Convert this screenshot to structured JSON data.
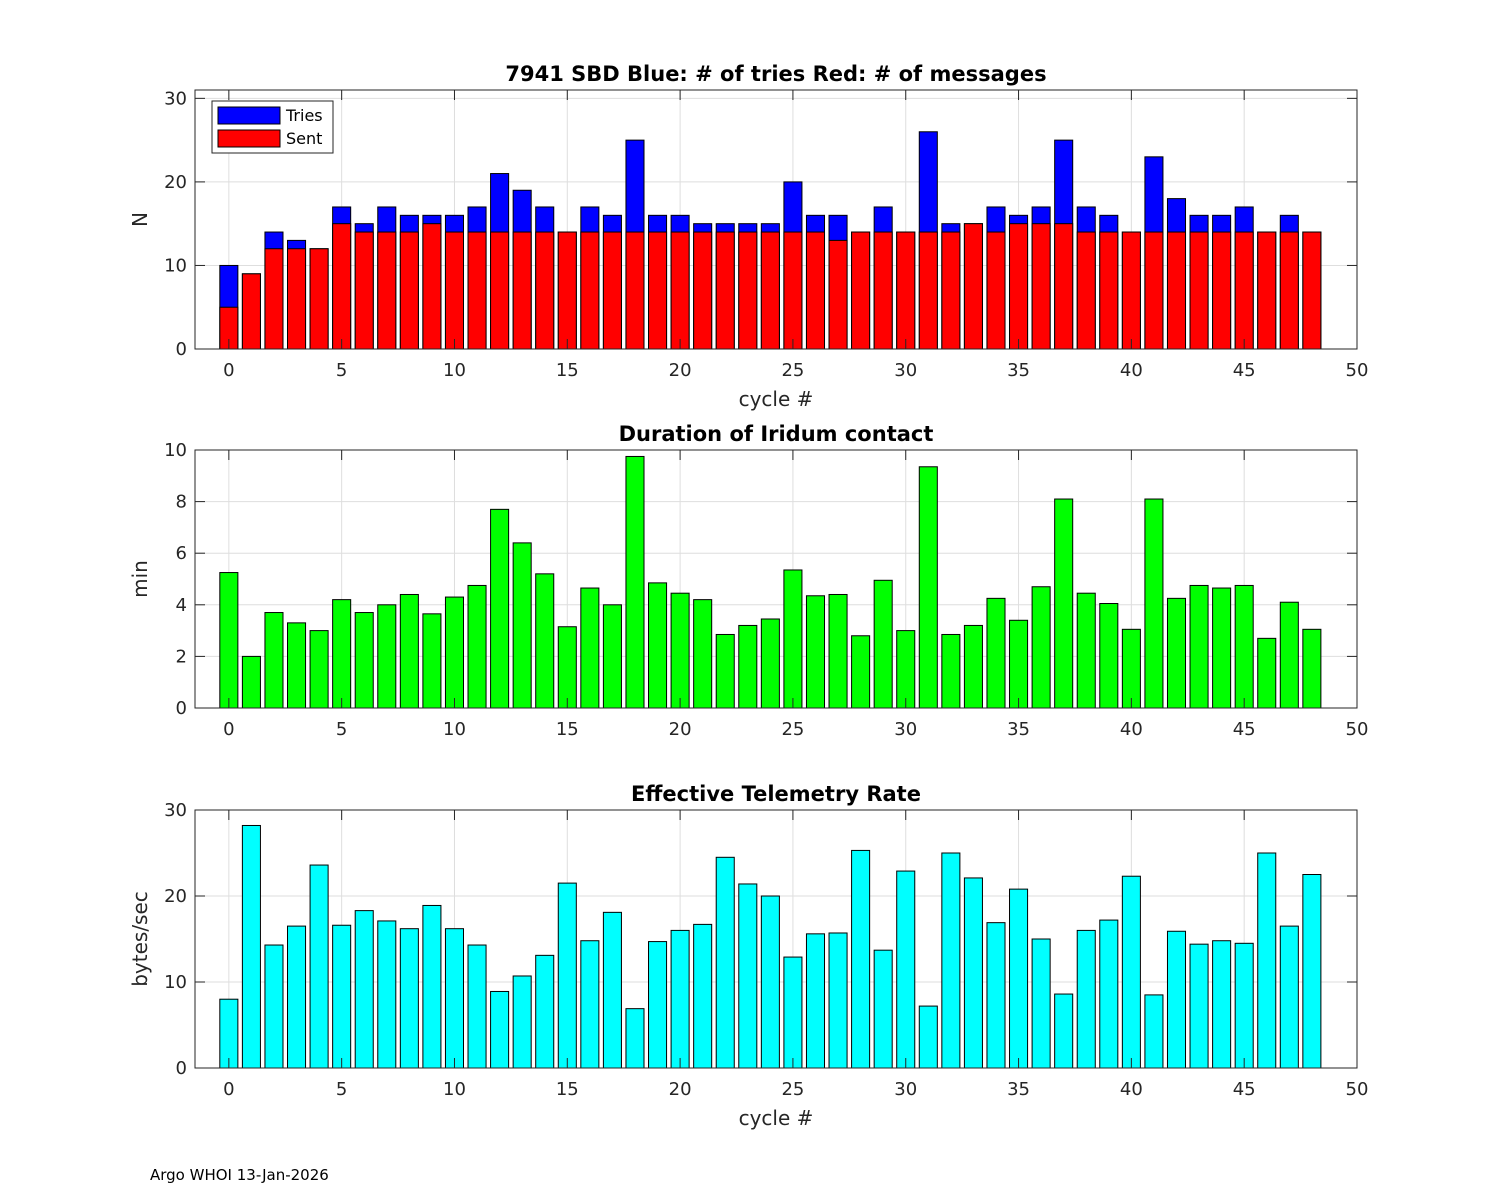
{
  "footer": "Argo WHOI 13-Jan-2026",
  "chart_data": [
    {
      "type": "bar",
      "title": "7941 SBD  Blue: # of tries   Red: # of messages",
      "xlabel": "cycle #",
      "ylabel": "N",
      "xlim": [
        -1.5,
        50
      ],
      "ylim": [
        0,
        31
      ],
      "xticks": [
        0,
        5,
        10,
        15,
        20,
        25,
        30,
        35,
        40,
        45,
        50
      ],
      "yticks": [
        0,
        10,
        20,
        30
      ],
      "grid": true,
      "legend": "top-left",
      "x": [
        0,
        1,
        2,
        3,
        4,
        5,
        6,
        7,
        8,
        9,
        10,
        11,
        12,
        13,
        14,
        15,
        16,
        17,
        18,
        19,
        20,
        21,
        22,
        23,
        24,
        25,
        26,
        27,
        28,
        29,
        30,
        31,
        32,
        33,
        34,
        35,
        36,
        37,
        38,
        39,
        40,
        41,
        42,
        43,
        44,
        45,
        46,
        47,
        48
      ],
      "series": [
        {
          "name": "Tries",
          "color": "#0000ff",
          "values": [
            10,
            9,
            14,
            13,
            12,
            17,
            15,
            17,
            16,
            16,
            16,
            17,
            21,
            19,
            17,
            14,
            17,
            16,
            25,
            16,
            16,
            15,
            15,
            15,
            15,
            20,
            16,
            16,
            14,
            17,
            14,
            26,
            15,
            15,
            17,
            16,
            17,
            25,
            17,
            16,
            14,
            23,
            18,
            16,
            16,
            17,
            14,
            16,
            14
          ]
        },
        {
          "name": "Sent",
          "color": "#ff0000",
          "values": [
            5,
            9,
            12,
            12,
            12,
            15,
            14,
            14,
            14,
            15,
            14,
            14,
            14,
            14,
            14,
            14,
            14,
            14,
            14,
            14,
            14,
            14,
            14,
            14,
            14,
            14,
            14,
            13,
            14,
            14,
            14,
            14,
            14,
            15,
            14,
            15,
            15,
            15,
            14,
            14,
            14,
            14,
            14,
            14,
            14,
            14,
            14,
            14,
            14
          ]
        }
      ]
    },
    {
      "type": "bar",
      "title": "Duration of Iridum contact",
      "xlabel": "",
      "ylabel": "min",
      "xlim": [
        -1.5,
        50
      ],
      "ylim": [
        0,
        10
      ],
      "xticks": [
        0,
        5,
        10,
        15,
        20,
        25,
        30,
        35,
        40,
        45,
        50
      ],
      "yticks": [
        0,
        2,
        4,
        6,
        8,
        10
      ],
      "grid": true,
      "x": [
        -1,
        0,
        1,
        2,
        3,
        4,
        5,
        6,
        7,
        8,
        9,
        10,
        11,
        12,
        13,
        14,
        15,
        16,
        17,
        18,
        19,
        20,
        21,
        22,
        23,
        24,
        25,
        26,
        27,
        28,
        29,
        30,
        31,
        32,
        33,
        34,
        35,
        36,
        37,
        38,
        39,
        40,
        41,
        42,
        43,
        44,
        45,
        46,
        47,
        48
      ],
      "series": [
        {
          "name": "Duration",
          "color": "#00ff00",
          "values": [
            0,
            5.25,
            2.0,
            3.7,
            3.3,
            3.0,
            4.2,
            3.7,
            4.0,
            4.4,
            3.65,
            4.3,
            4.75,
            7.7,
            6.4,
            5.2,
            3.15,
            4.65,
            4.0,
            9.75,
            4.85,
            4.45,
            4.2,
            2.85,
            3.2,
            3.45,
            5.35,
            4.35,
            4.4,
            2.8,
            4.95,
            3.0,
            9.35,
            2.85,
            3.2,
            4.25,
            3.4,
            4.7,
            8.1,
            4.45,
            4.05,
            3.05,
            8.1,
            4.25,
            4.75,
            4.65,
            4.75,
            2.7,
            4.1,
            3.05
          ]
        }
      ]
    },
    {
      "type": "bar",
      "title": "Effective Telemetry Rate",
      "xlabel": "cycle #",
      "ylabel": "bytes/sec",
      "xlim": [
        -1.5,
        50
      ],
      "ylim": [
        0,
        30
      ],
      "xticks": [
        0,
        5,
        10,
        15,
        20,
        25,
        30,
        35,
        40,
        45,
        50
      ],
      "yticks": [
        0,
        10,
        20,
        30
      ],
      "grid": true,
      "x": [
        0,
        1,
        2,
        3,
        4,
        5,
        6,
        7,
        8,
        9,
        10,
        11,
        12,
        13,
        14,
        15,
        16,
        17,
        18,
        19,
        20,
        21,
        22,
        23,
        24,
        25,
        26,
        27,
        28,
        29,
        30,
        31,
        32,
        33,
        34,
        35,
        36,
        37,
        38,
        39,
        40,
        41,
        42,
        43,
        44,
        45,
        46,
        47,
        48
      ],
      "series": [
        {
          "name": "Rate",
          "color": "#00ffff",
          "values": [
            8.0,
            28.2,
            14.3,
            16.5,
            23.6,
            16.6,
            18.3,
            17.1,
            16.2,
            18.9,
            16.2,
            14.3,
            8.9,
            10.7,
            13.1,
            21.5,
            14.8,
            18.1,
            6.9,
            14.7,
            16.0,
            16.7,
            24.5,
            21.4,
            20.0,
            12.9,
            15.6,
            15.7,
            25.3,
            13.7,
            22.9,
            7.2,
            25.0,
            22.1,
            16.9,
            20.8,
            15.0,
            8.6,
            16.0,
            17.2,
            22.3,
            8.5,
            15.9,
            14.4,
            14.8,
            14.5,
            25.0,
            16.5,
            22.5
          ]
        }
      ]
    }
  ]
}
